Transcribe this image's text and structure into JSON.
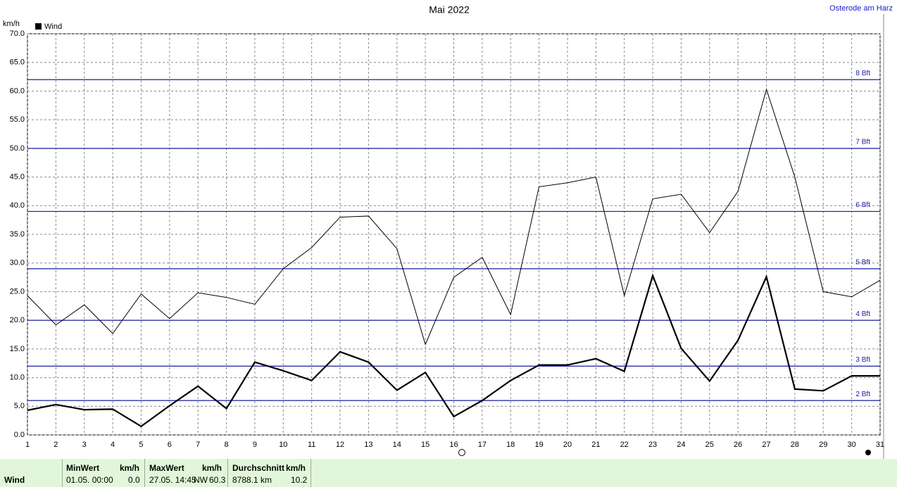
{
  "chart_data": {
    "type": "line",
    "title": "Mai 2022",
    "location": "Osterode am Harz",
    "y_unit": "km/h",
    "legend": "Wind",
    "x": [
      1,
      2,
      3,
      4,
      5,
      6,
      7,
      8,
      9,
      10,
      11,
      12,
      13,
      14,
      15,
      16,
      17,
      18,
      19,
      20,
      21,
      22,
      23,
      24,
      25,
      26,
      27,
      28,
      29,
      30,
      31
    ],
    "xlim": [
      1,
      31
    ],
    "xticks": [
      1,
      2,
      3,
      4,
      5,
      6,
      7,
      8,
      9,
      10,
      11,
      12,
      13,
      14,
      15,
      16,
      17,
      18,
      19,
      20,
      21,
      22,
      23,
      24,
      25,
      26,
      27,
      28,
      29,
      30,
      31
    ],
    "ylim": [
      0,
      70
    ],
    "yticks": [
      {
        "value": 0,
        "label": "0.0"
      },
      {
        "value": 5,
        "label": "5.0"
      },
      {
        "value": 10,
        "label": "10.0"
      },
      {
        "value": 15,
        "label": "15.0"
      },
      {
        "value": 20,
        "label": "20.0"
      },
      {
        "value": 25,
        "label": "25.0"
      },
      {
        "value": 30,
        "label": "30.0"
      },
      {
        "value": 35,
        "label": "35.0"
      },
      {
        "value": 40,
        "label": "40.0"
      },
      {
        "value": 45,
        "label": "45.0"
      },
      {
        "value": 50,
        "label": "50.0"
      },
      {
        "value": 55,
        "label": "55.0"
      },
      {
        "value": 60,
        "label": "60.0"
      },
      {
        "value": 65,
        "label": "65.0"
      },
      {
        "value": 70,
        "label": "70.0"
      }
    ],
    "grid": true,
    "series": [
      {
        "color": "#000000",
        "width": 1,
        "values": [
          24.3,
          19.2,
          22.7,
          17.7,
          24.6,
          20.3,
          24.8,
          24.0,
          22.8,
          29.0,
          32.7,
          38.0,
          38.2,
          32.5,
          15.8,
          27.5,
          31.0,
          21.0,
          43.3,
          44.0,
          45.0,
          24.3,
          41.2,
          42.0,
          35.3,
          42.5,
          60.3,
          45.0,
          25.0,
          24.1,
          27.0
        ]
      },
      {
        "color": "#000000",
        "width": 2.2,
        "values": [
          4.3,
          5.3,
          4.4,
          4.5,
          1.5,
          5.1,
          8.5,
          4.6,
          12.7,
          11.2,
          9.5,
          14.5,
          12.7,
          7.8,
          10.9,
          3.2,
          6.0,
          9.5,
          12.2,
          12.2,
          13.3,
          11.1,
          27.8,
          15.1,
          9.4,
          16.5,
          27.6,
          8.0,
          7.7,
          10.3,
          10.3
        ]
      }
    ],
    "reference_lines": [
      {
        "value": 6,
        "label": "2 Bft"
      },
      {
        "value": 12,
        "label": "3 Bft"
      },
      {
        "value": 20,
        "label": "4 Bft"
      },
      {
        "value": 29,
        "label": "5 Bft"
      },
      {
        "value": 39,
        "label": "6 Bft"
      },
      {
        "value": 50,
        "label": "7 Bft"
      },
      {
        "value": 62,
        "label": "8 Bft"
      }
    ],
    "reference_color": "#1a1aa0"
  },
  "footer": {
    "row_label": "Wind",
    "min": {
      "head": "MinWert",
      "unit": "km/h",
      "time": "01.05.  00:00",
      "value": "0.0"
    },
    "max": {
      "head": "MaxWert",
      "unit": "km/h",
      "time": "27.05.  14:45",
      "dir": "NW",
      "value": "60.3"
    },
    "avg": {
      "head": "Durchschnitt",
      "unit": "km/h",
      "distance": "8788.1 km",
      "value": "10.2"
    }
  }
}
